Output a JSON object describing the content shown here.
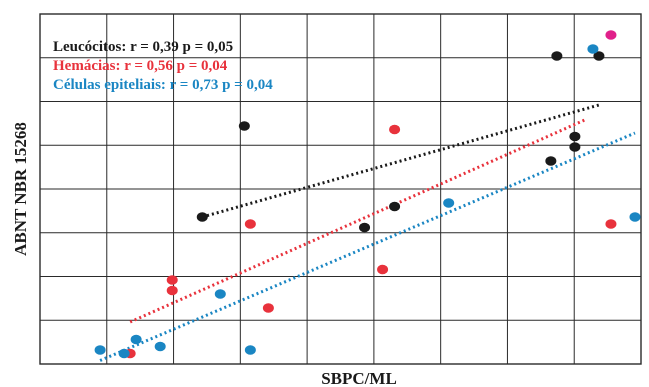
{
  "chart_data": {
    "type": "scatter",
    "title": "",
    "xlabel": "SBPC/ML",
    "ylabel": "ABNT NBR 15268",
    "xlim": [
      0,
      100
    ],
    "ylim": [
      0,
      100
    ],
    "grid": true,
    "legend": "top-left",
    "colors": {
      "leucocitos": "#1a1a1a",
      "hemacias": "#e8323c",
      "epiteliais": "#1a86c3",
      "outlier": "#e0208a"
    },
    "series": [
      {
        "name": "Leucócitos",
        "label": "Leucócitos: r = 0,39  p = 0,05",
        "color": "#1a1a1a",
        "points": [
          [
            27,
            42
          ],
          [
            34,
            68
          ],
          [
            54,
            39
          ],
          [
            59,
            45
          ],
          [
            85,
            58
          ],
          [
            86,
            88
          ],
          [
            89,
            65
          ],
          [
            89,
            62
          ],
          [
            93,
            88
          ]
        ],
        "trend": [
          [
            27,
            42
          ],
          [
            93,
            74
          ]
        ]
      },
      {
        "name": "Hemácias",
        "label": "Hemácias: r = 0,56  p = 0,04",
        "color": "#e8323c",
        "points": [
          [
            15,
            3
          ],
          [
            22,
            24
          ],
          [
            22,
            21
          ],
          [
            35,
            40
          ],
          [
            38,
            16
          ],
          [
            57,
            27
          ],
          [
            59,
            67
          ],
          [
            95,
            40
          ]
        ],
        "trend": [
          [
            15,
            12
          ],
          [
            91,
            70
          ]
        ]
      },
      {
        "name": "Células epiteliais",
        "label": "Células epiteliais: r = 0,73  p = 0,04",
        "color": "#1a86c3",
        "points": [
          [
            10,
            4
          ],
          [
            14,
            3
          ],
          [
            16,
            7
          ],
          [
            20,
            5
          ],
          [
            30,
            20
          ],
          [
            35,
            4
          ],
          [
            68,
            46
          ],
          [
            92,
            90
          ],
          [
            99,
            42
          ]
        ],
        "trend": [
          [
            10,
            1
          ],
          [
            99,
            66
          ]
        ]
      }
    ],
    "extra_points": [
      {
        "color": "#e0208a",
        "point": [
          95,
          94
        ]
      }
    ]
  }
}
